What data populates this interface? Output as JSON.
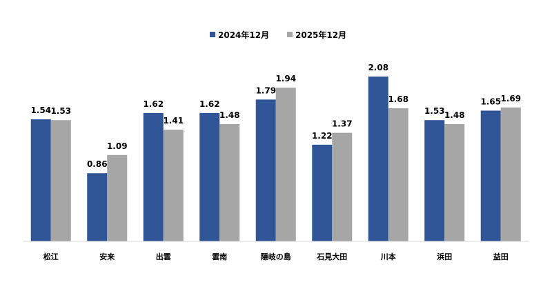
{
  "chart_data": {
    "type": "bar",
    "title": "",
    "xlabel": "",
    "ylabel": "",
    "ylim": [
      0,
      2.08
    ],
    "grid": false,
    "legend_position": "top-center",
    "categories": [
      "松江",
      "安来",
      "出雲",
      "雲南",
      "隠岐の島",
      "石見大田",
      "川本",
      "浜田",
      "益田"
    ],
    "series": [
      {
        "name": "2024年12月",
        "color": "#2F5597",
        "values": [
          1.54,
          0.86,
          1.62,
          1.62,
          1.79,
          1.22,
          2.08,
          1.53,
          1.65
        ]
      },
      {
        "name": "2025年12月",
        "color": "#A6A6A6",
        "values": [
          1.53,
          1.09,
          1.41,
          1.48,
          1.94,
          1.37,
          1.68,
          1.48,
          1.69
        ]
      }
    ]
  }
}
